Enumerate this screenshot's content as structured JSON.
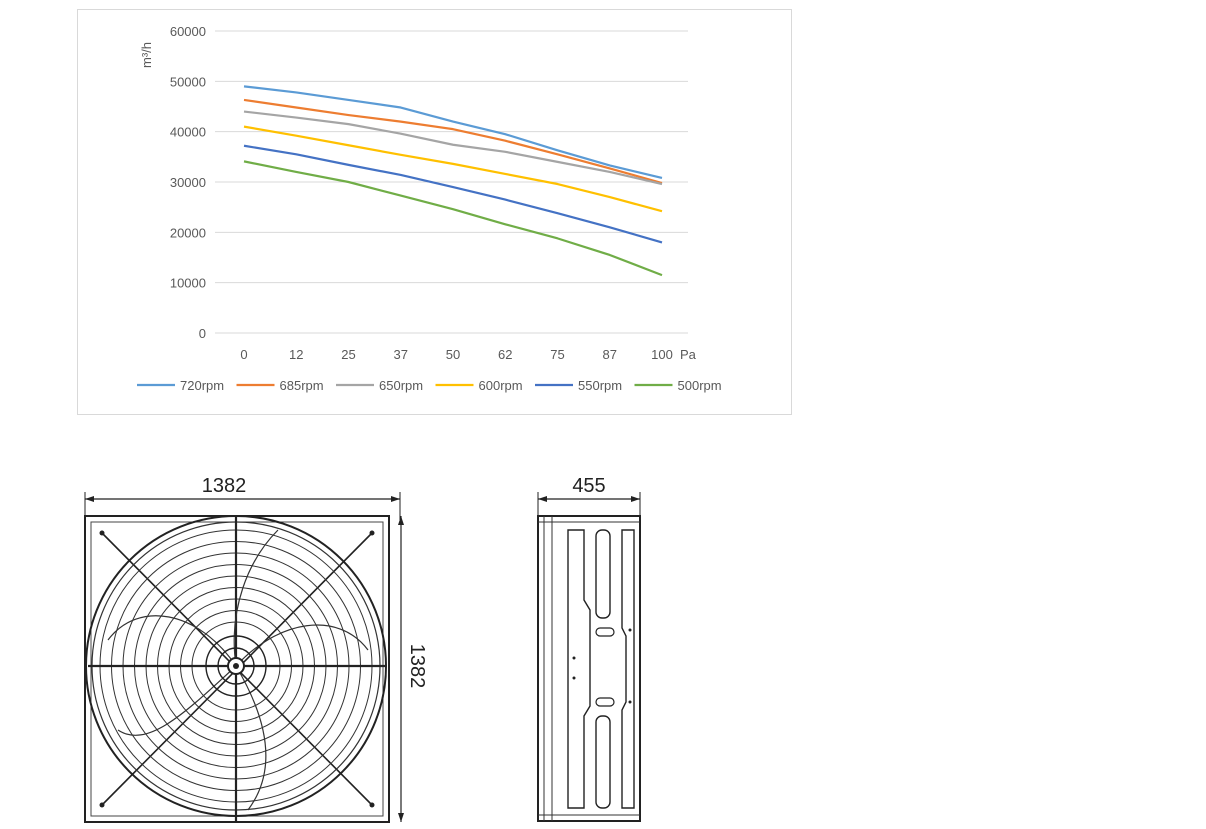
{
  "chart_data": {
    "type": "line",
    "ylabel": "m³/h",
    "xunit": "Pa",
    "x": [
      "0",
      "12",
      "25",
      "37",
      "50",
      "62",
      "75",
      "87",
      "100"
    ],
    "ylim": [
      0,
      60000
    ],
    "yticks": [
      0,
      10000,
      20000,
      30000,
      40000,
      50000,
      60000
    ],
    "ytick_labels": [
      "0",
      "10000",
      "20000",
      "30000",
      "40000",
      "50000",
      "60000"
    ],
    "grid": "horizontal",
    "legend_position": "bottom",
    "series": [
      {
        "name": "720rpm",
        "color": "#5B9BD5",
        "values": [
          49000,
          47800,
          46300,
          44800,
          42000,
          39500,
          36300,
          33300,
          30800
        ]
      },
      {
        "name": "685rpm",
        "color": "#ED7D31",
        "values": [
          46300,
          44800,
          43300,
          42000,
          40500,
          38200,
          35500,
          32700,
          29800
        ]
      },
      {
        "name": "650rpm",
        "color": "#A5A5A5",
        "values": [
          44000,
          42800,
          41500,
          39600,
          37400,
          36000,
          34000,
          32000,
          29600
        ]
      },
      {
        "name": "600rpm",
        "color": "#FFC000",
        "values": [
          41000,
          39200,
          37300,
          35400,
          33600,
          31600,
          29600,
          27000,
          24200
        ]
      },
      {
        "name": "550rpm",
        "color": "#4472C4",
        "values": [
          37200,
          35500,
          33400,
          31400,
          29000,
          26500,
          23800,
          21000,
          18000
        ]
      },
      {
        "name": "500rpm",
        "color": "#70AD47",
        "values": [
          34100,
          32000,
          30000,
          27300,
          24600,
          21600,
          18800,
          15500,
          11500
        ]
      }
    ]
  },
  "drawings": {
    "front_width": "1382",
    "front_height": "1382",
    "side_depth": "455"
  }
}
